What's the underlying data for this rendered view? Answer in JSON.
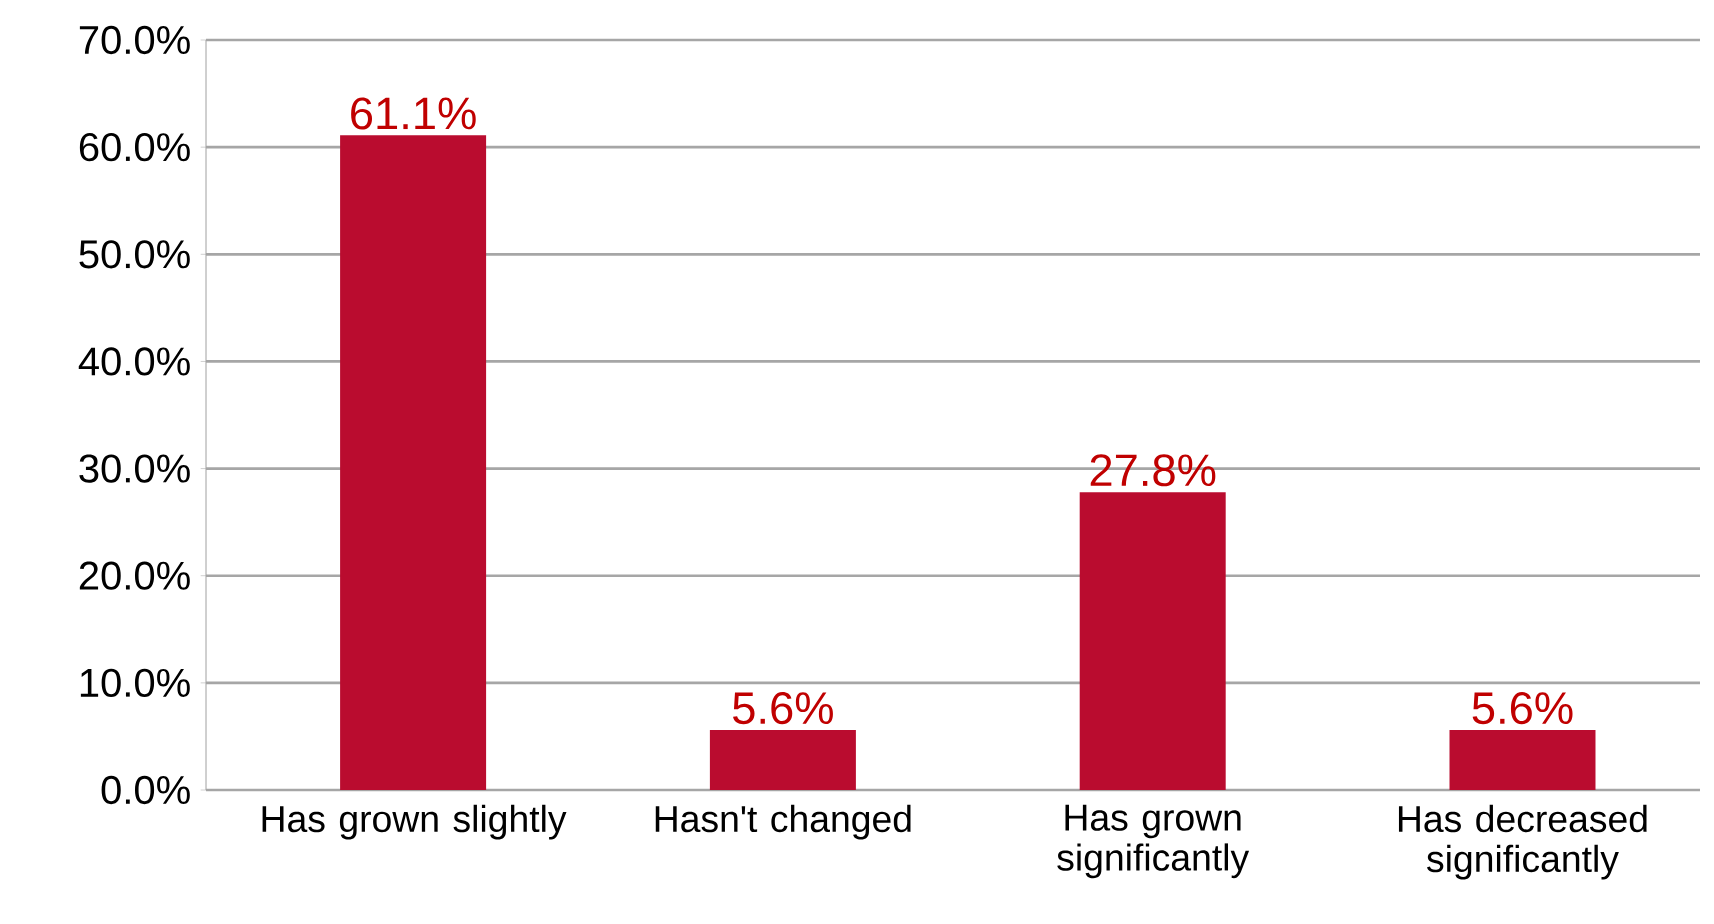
{
  "chart_data": {
    "type": "bar",
    "categories": [
      "Has grown slightly",
      "Hasn't changed",
      "Has grown significantly",
      "Has decreased significantly"
    ],
    "values": [
      61.1,
      5.6,
      27.8,
      5.6
    ],
    "value_labels": [
      "61.1%",
      "5.6%",
      "27.8%",
      "5.6%"
    ],
    "color": "#ba0c2f",
    "ylim": [
      0,
      70
    ],
    "yticks": [
      {
        "value": 0,
        "label": "0.0%"
      },
      {
        "value": 10,
        "label": "10.0%"
      },
      {
        "value": 20,
        "label": "20.0%"
      },
      {
        "value": 30,
        "label": "30.0%"
      },
      {
        "value": 40,
        "label": "40.0%"
      },
      {
        "value": 50,
        "label": "50.0%"
      },
      {
        "value": 60,
        "label": "60.0%"
      },
      {
        "value": 70,
        "label": "70.0%"
      }
    ],
    "grid": "y"
  }
}
